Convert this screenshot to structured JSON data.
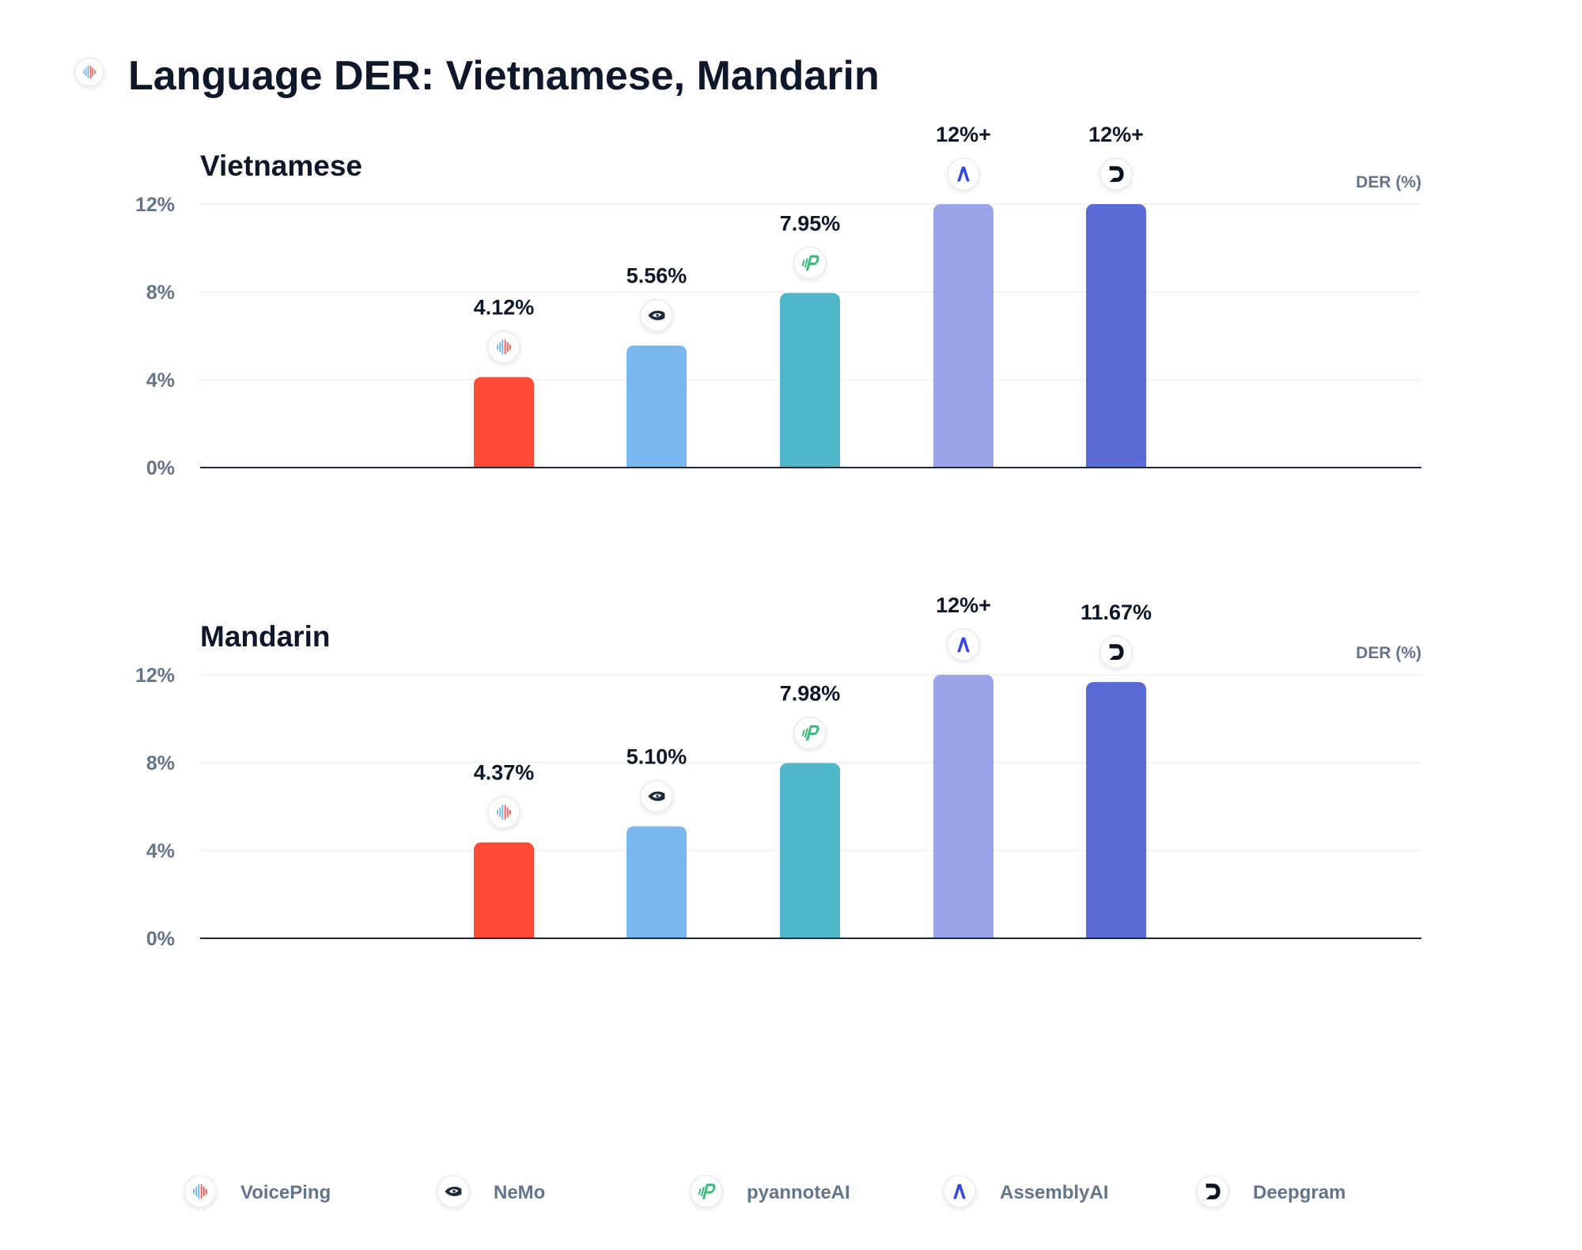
{
  "title": "Language DER: Vietnamese, Mandarin",
  "legend": [
    {
      "name": "VoicePing",
      "icon": "voiceping-icon",
      "color": "#ff4a36"
    },
    {
      "name": "NeMo",
      "icon": "nvidia-icon",
      "color": "#79b8ef"
    },
    {
      "name": "pyannoteAI",
      "icon": "pyannote-icon",
      "color": "#4fb7c9"
    },
    {
      "name": "AssemblyAI",
      "icon": "assemblyai-icon",
      "color": "#9ba4e9"
    },
    {
      "name": "Deepgram",
      "icon": "deepgram-icon",
      "color": "#5b6bd5"
    }
  ],
  "chart_data": [
    {
      "type": "bar",
      "title": "Vietnamese",
      "ylabel": "DER (%)",
      "ylim": [
        0,
        12
      ],
      "yticks": [
        0,
        4,
        8,
        12
      ],
      "ytick_labels": [
        "0%",
        "4%",
        "8%",
        "12%"
      ],
      "grid": true,
      "categories": [
        "VoicePing",
        "NeMo",
        "pyannoteAI",
        "AssemblyAI",
        "Deepgram"
      ],
      "values": [
        4.12,
        5.56,
        7.95,
        12,
        12
      ],
      "labels": [
        "4.12%",
        "5.56%",
        "7.95%",
        "12%+",
        "12%+"
      ]
    },
    {
      "type": "bar",
      "title": "Mandarin",
      "ylabel": "DER (%)",
      "ylim": [
        0,
        12
      ],
      "yticks": [
        0,
        4,
        8,
        12
      ],
      "ytick_labels": [
        "0%",
        "4%",
        "8%",
        "12%"
      ],
      "grid": true,
      "categories": [
        "VoicePing",
        "NeMo",
        "pyannoteAI",
        "AssemblyAI",
        "Deepgram"
      ],
      "values": [
        4.37,
        5.1,
        7.98,
        12,
        11.67
      ],
      "labels": [
        "4.37%",
        "5.10%",
        "7.98%",
        "12%+",
        "11.67%"
      ]
    }
  ]
}
